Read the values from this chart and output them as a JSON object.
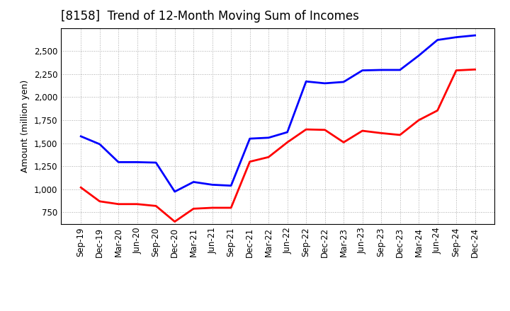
{
  "title": "[8158]  Trend of 12-Month Moving Sum of Incomes",
  "ylabel": "Amount (million yen)",
  "background_color": "#ffffff",
  "plot_bg_color": "#ffffff",
  "grid_color": "#aaaaaa",
  "x_labels": [
    "Sep-19",
    "Dec-19",
    "Mar-20",
    "Jun-20",
    "Sep-20",
    "Dec-20",
    "Mar-21",
    "Jun-21",
    "Sep-21",
    "Dec-21",
    "Mar-22",
    "Jun-22",
    "Sep-22",
    "Dec-22",
    "Mar-23",
    "Jun-23",
    "Sep-23",
    "Dec-23",
    "Mar-24",
    "Jun-24",
    "Sep-24",
    "Dec-24"
  ],
  "ordinary_income": [
    1575,
    1490,
    1295,
    1295,
    1290,
    975,
    1080,
    1050,
    1040,
    1550,
    1560,
    1620,
    2170,
    2150,
    2165,
    2290,
    2295,
    2295,
    2450,
    2620,
    2650,
    2670
  ],
  "net_income": [
    1020,
    870,
    840,
    840,
    820,
    650,
    790,
    800,
    800,
    1300,
    1350,
    1510,
    1650,
    1645,
    1510,
    1635,
    1610,
    1590,
    1750,
    1855,
    2290,
    2300
  ],
  "ordinary_color": "#0000ff",
  "net_color": "#ff0000",
  "line_width": 2.0,
  "ylim_min": 625,
  "ylim_max": 2750,
  "yticks": [
    750,
    1000,
    1250,
    1500,
    1750,
    2000,
    2250,
    2500
  ],
  "title_fontsize": 12,
  "axis_fontsize": 9,
  "tick_fontsize": 8.5
}
